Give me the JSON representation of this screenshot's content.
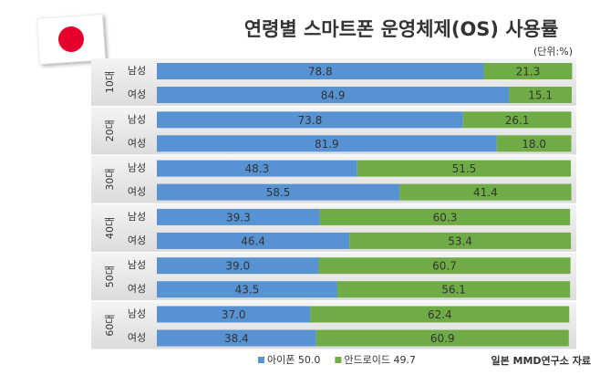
{
  "chart_data": {
    "type": "stacked-bar",
    "orientation": "horizontal",
    "title": "연령별 스마트폰 운영체제(OS) 사용률",
    "subtitle": "(단위:%)",
    "source": "일본 MMD연구소 자료",
    "groups": [
      "10대",
      "20대",
      "30대",
      "40대",
      "50대",
      "60대"
    ],
    "categories": [
      "남성",
      "여성",
      "남성",
      "여성",
      "남성",
      "여성",
      "남성",
      "여성",
      "남성",
      "여성",
      "남성",
      "여성"
    ],
    "xlim": [
      0,
      100
    ],
    "series": [
      {
        "name": "아이폰 50.0",
        "color": "#5793d3",
        "values": [
          78.8,
          84.9,
          73.8,
          81.9,
          48.3,
          58.5,
          39.3,
          46.4,
          39.0,
          43.5,
          37.0,
          38.4
        ],
        "value_labels": [
          "78.8",
          "84.9",
          "73.8",
          "81.9",
          "48.3",
          "58.5",
          "39.3",
          "46.4",
          "39.0",
          "43.5",
          "37.0",
          "38.4"
        ]
      },
      {
        "name": "안드로이드 49.7",
        "color": "#6fac46",
        "values": [
          21.3,
          15.1,
          26.1,
          18.0,
          51.5,
          41.4,
          60.3,
          53.4,
          60.7,
          56.1,
          62.4,
          60.9
        ],
        "value_labels": [
          "21.3",
          "15.1",
          "26.1",
          "18.0",
          "51.5",
          "41.4",
          "60.3",
          "53.4",
          "60.7",
          "56.1",
          "62.4",
          "60.9"
        ]
      }
    ]
  }
}
